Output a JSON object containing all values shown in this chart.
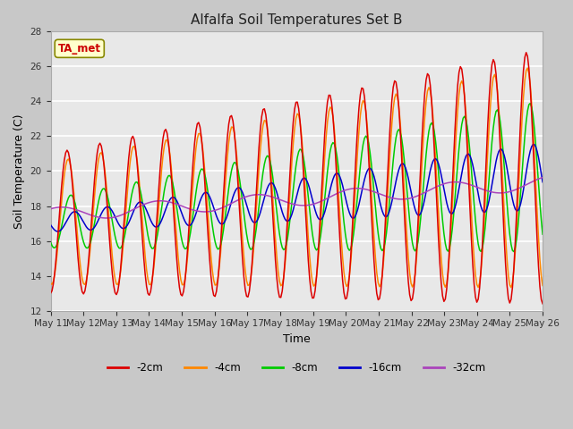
{
  "title": "Alfalfa Soil Temperatures Set B",
  "xlabel": "Time",
  "ylabel": "Soil Temperature (C)",
  "ylim": [
    12,
    28
  ],
  "yticks": [
    12,
    14,
    16,
    18,
    20,
    22,
    24,
    26,
    28
  ],
  "colors": {
    "-2cm": "#dd0000",
    "-4cm": "#ff8800",
    "-8cm": "#00cc00",
    "-16cm": "#0000cc",
    "-32cm": "#aa44bb"
  },
  "legend_labels": [
    "-2cm",
    "-4cm",
    "-8cm",
    "-16cm",
    "-32cm"
  ],
  "ta_met_label": "TA_met",
  "ta_met_color": "#cc0000",
  "ta_met_bg": "#ffffcc",
  "background_color": "#e8e8e8",
  "plot_bg": "#e8e8e8",
  "fig_bg": "#c8c8c8",
  "grid_color": "#ffffff",
  "n_days": 15,
  "start_day": 11
}
